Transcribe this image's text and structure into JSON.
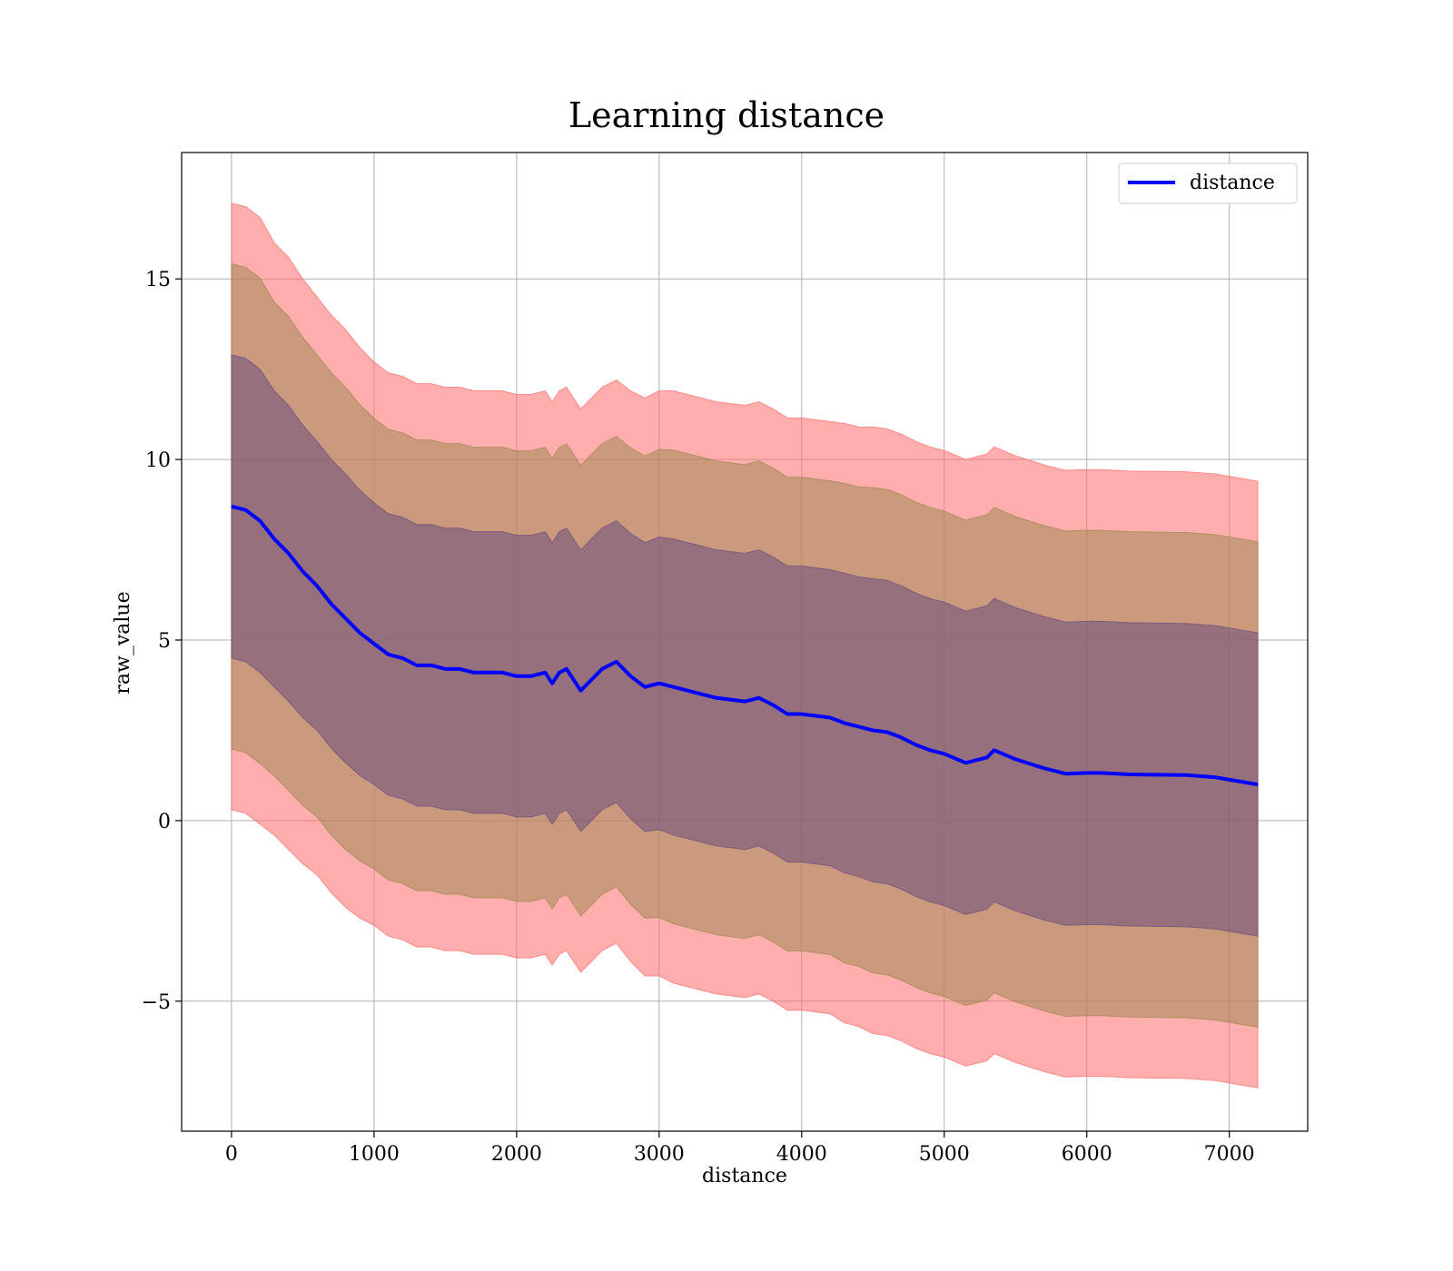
{
  "chart_data": {
    "type": "line",
    "title": "Learning distance",
    "xlabel": "distance",
    "ylabel": "raw_value",
    "xlim": [
      -350,
      7550
    ],
    "ylim": [
      -8.6,
      18.5
    ],
    "x_ticks": [
      0,
      1000,
      2000,
      3000,
      4000,
      5000,
      6000,
      7000
    ],
    "x_tick_labels": [
      "0",
      "1000",
      "2000",
      "3000",
      "4000",
      "5000",
      "6000",
      "7000"
    ],
    "y_ticks": [
      -5,
      0,
      5,
      10,
      15
    ],
    "y_tick_labels": [
      "−5",
      "0",
      "5",
      "10",
      "15"
    ],
    "grid": true,
    "legend": {
      "position": "top-right",
      "entries": [
        {
          "label": "distance",
          "color": "#0000ff"
        }
      ]
    },
    "colors": {
      "line": "#0000ff",
      "band_outer": "#ff6b6b",
      "band_middle": "#b98a4f",
      "band_inner": "#7a4f7e"
    },
    "series": [
      {
        "name": "distance",
        "x": [
          0,
          100,
          200,
          300,
          400,
          500,
          600,
          700,
          800,
          900,
          1000,
          1100,
          1200,
          1300,
          1400,
          1500,
          1600,
          1700,
          1800,
          1900,
          2000,
          2100,
          2200,
          2250,
          2300,
          2350,
          2400,
          2450,
          2500,
          2600,
          2700,
          2800,
          2900,
          3000,
          3100,
          3200,
          3300,
          3400,
          3500,
          3600,
          3700,
          3800,
          3900,
          4000,
          4100,
          4200,
          4300,
          4400,
          4500,
          4600,
          4700,
          4800,
          4900,
          5000,
          5150,
          5250,
          5300,
          5350,
          5500,
          5700,
          5850,
          6000,
          6100,
          6300,
          6500,
          6700,
          6900,
          7200
        ],
        "y": [
          8.7,
          8.6,
          8.3,
          7.8,
          7.4,
          6.9,
          6.5,
          6.0,
          5.6,
          5.2,
          4.9,
          4.6,
          4.5,
          4.3,
          4.3,
          4.2,
          4.2,
          4.1,
          4.1,
          4.1,
          4.0,
          4.0,
          4.1,
          3.8,
          4.1,
          4.2,
          3.9,
          3.6,
          3.8,
          4.2,
          4.4,
          4.0,
          3.7,
          3.8,
          3.7,
          3.6,
          3.5,
          3.4,
          3.35,
          3.3,
          3.4,
          3.2,
          2.95,
          2.95,
          2.9,
          2.85,
          2.7,
          2.6,
          2.5,
          2.45,
          2.3,
          2.1,
          1.95,
          1.85,
          1.6,
          1.7,
          1.75,
          1.95,
          1.7,
          1.45,
          1.3,
          1.32,
          1.32,
          1.28,
          1.27,
          1.26,
          1.2,
          1.0
        ],
        "std": [
          4.2,
          4.2,
          4.2,
          4.1,
          4.1,
          4.05,
          4.0,
          4.0,
          4.0,
          3.95,
          3.9,
          3.9,
          3.9,
          3.9,
          3.9,
          3.9,
          3.9,
          3.9,
          3.9,
          3.9,
          3.9,
          3.9,
          3.9,
          3.9,
          3.9,
          3.9,
          3.9,
          3.9,
          3.9,
          3.9,
          3.9,
          3.95,
          4.0,
          4.05,
          4.1,
          4.1,
          4.1,
          4.1,
          4.1,
          4.1,
          4.1,
          4.1,
          4.1,
          4.1,
          4.1,
          4.1,
          4.15,
          4.15,
          4.2,
          4.2,
          4.2,
          4.2,
          4.2,
          4.2,
          4.2,
          4.2,
          4.2,
          4.2,
          4.2,
          4.2,
          4.2,
          4.2,
          4.2,
          4.2,
          4.2,
          4.2,
          4.2,
          4.2
        ]
      }
    ],
    "bands": [
      {
        "k_std": 2,
        "color": "#ff6b6b",
        "opacity": 0.55
      },
      {
        "k_std": 1.6,
        "color": "#a08852",
        "opacity": 0.55
      },
      {
        "k_std": 1,
        "color": "#6b4f80",
        "opacity": 0.55
      }
    ]
  }
}
